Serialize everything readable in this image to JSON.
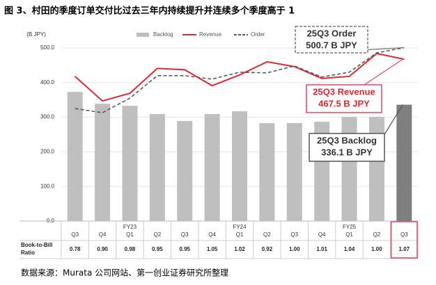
{
  "chart_data": {
    "type": "combo",
    "title": "图 3、村田的季度订单交付比过去三年内持续提升并连续多个季度高于 1",
    "y_unit": "(B JPY)",
    "source": "数据来源：Murata 公司网站、第一创业证券研究所整理",
    "categories": [
      "Q3",
      "Q4",
      "Q1",
      "Q2",
      "Q3",
      "Q4",
      "Q1",
      "Q2",
      "Q3",
      "Q4",
      "Q1",
      "Q2",
      "Q3"
    ],
    "fiscal_years": [
      null,
      null,
      "FY23",
      null,
      null,
      null,
      "FY24",
      null,
      null,
      null,
      "FY25",
      null,
      null
    ],
    "ylim": [
      0,
      500
    ],
    "yticks": [
      {
        "value": 0,
        "label": "0.0"
      },
      {
        "value": 100,
        "label": "100.0"
      },
      {
        "value": 200,
        "label": "200.0"
      },
      {
        "value": 300,
        "label": "300.0"
      },
      {
        "value": 400,
        "label": "400.0"
      },
      {
        "value": 500,
        "label": "500.0"
      }
    ],
    "grid": true,
    "series": [
      {
        "name": "Backlog",
        "type": "bar",
        "color": "#bfbfbf",
        "colors": [
          "#bfbfbf",
          "#bfbfbf",
          "#bfbfbf",
          "#bfbfbf",
          "#bfbfbf",
          "#bfbfbf",
          "#bfbfbf",
          "#bfbfbf",
          "#bfbfbf",
          "#bfbfbf",
          "#bfbfbf",
          "#bfbfbf",
          "#7f7f7f"
        ],
        "values": [
          373,
          339,
          333,
          309,
          289,
          309,
          317,
          283,
          283,
          287,
          301,
          301,
          336.1
        ]
      },
      {
        "name": "Revenue",
        "type": "line",
        "color": "#e0262e",
        "dash": false,
        "values": [
          418,
          347,
          369,
          441,
          437,
          391,
          422,
          460,
          446,
          412,
          418,
          484,
          467.5
        ]
      },
      {
        "name": "Order",
        "type": "line",
        "color": "#595959",
        "dash": true,
        "values": [
          325,
          313,
          355,
          420,
          420,
          410,
          430,
          428,
          448,
          416,
          430,
          486,
          500.7
        ]
      }
    ],
    "book_to_bill": {
      "label": "Book-to-Bill Ratio",
      "values": [
        0.78,
        0.9,
        0.98,
        0.95,
        0.95,
        1.05,
        1.02,
        0.92,
        1.0,
        1.01,
        1.04,
        1.0,
        1.07
      ],
      "value_labels": [
        "0.78",
        "0.90",
        "0.98",
        "0.95",
        "0.95",
        "1.05",
        "1.02",
        "0.92",
        "1.00",
        "1.01",
        "1.04",
        "1.00",
        "1.07"
      ]
    },
    "annotations": [
      {
        "series": "Order",
        "lines": [
          "25Q3 Order",
          "500.7 B JPY"
        ]
      },
      {
        "series": "Revenue",
        "lines": [
          "25Q3 Revenue",
          "467.5 B JPY"
        ]
      },
      {
        "series": "Backlog",
        "lines": [
          "25Q3 Backlog",
          "336.1 B JPY"
        ]
      }
    ]
  }
}
